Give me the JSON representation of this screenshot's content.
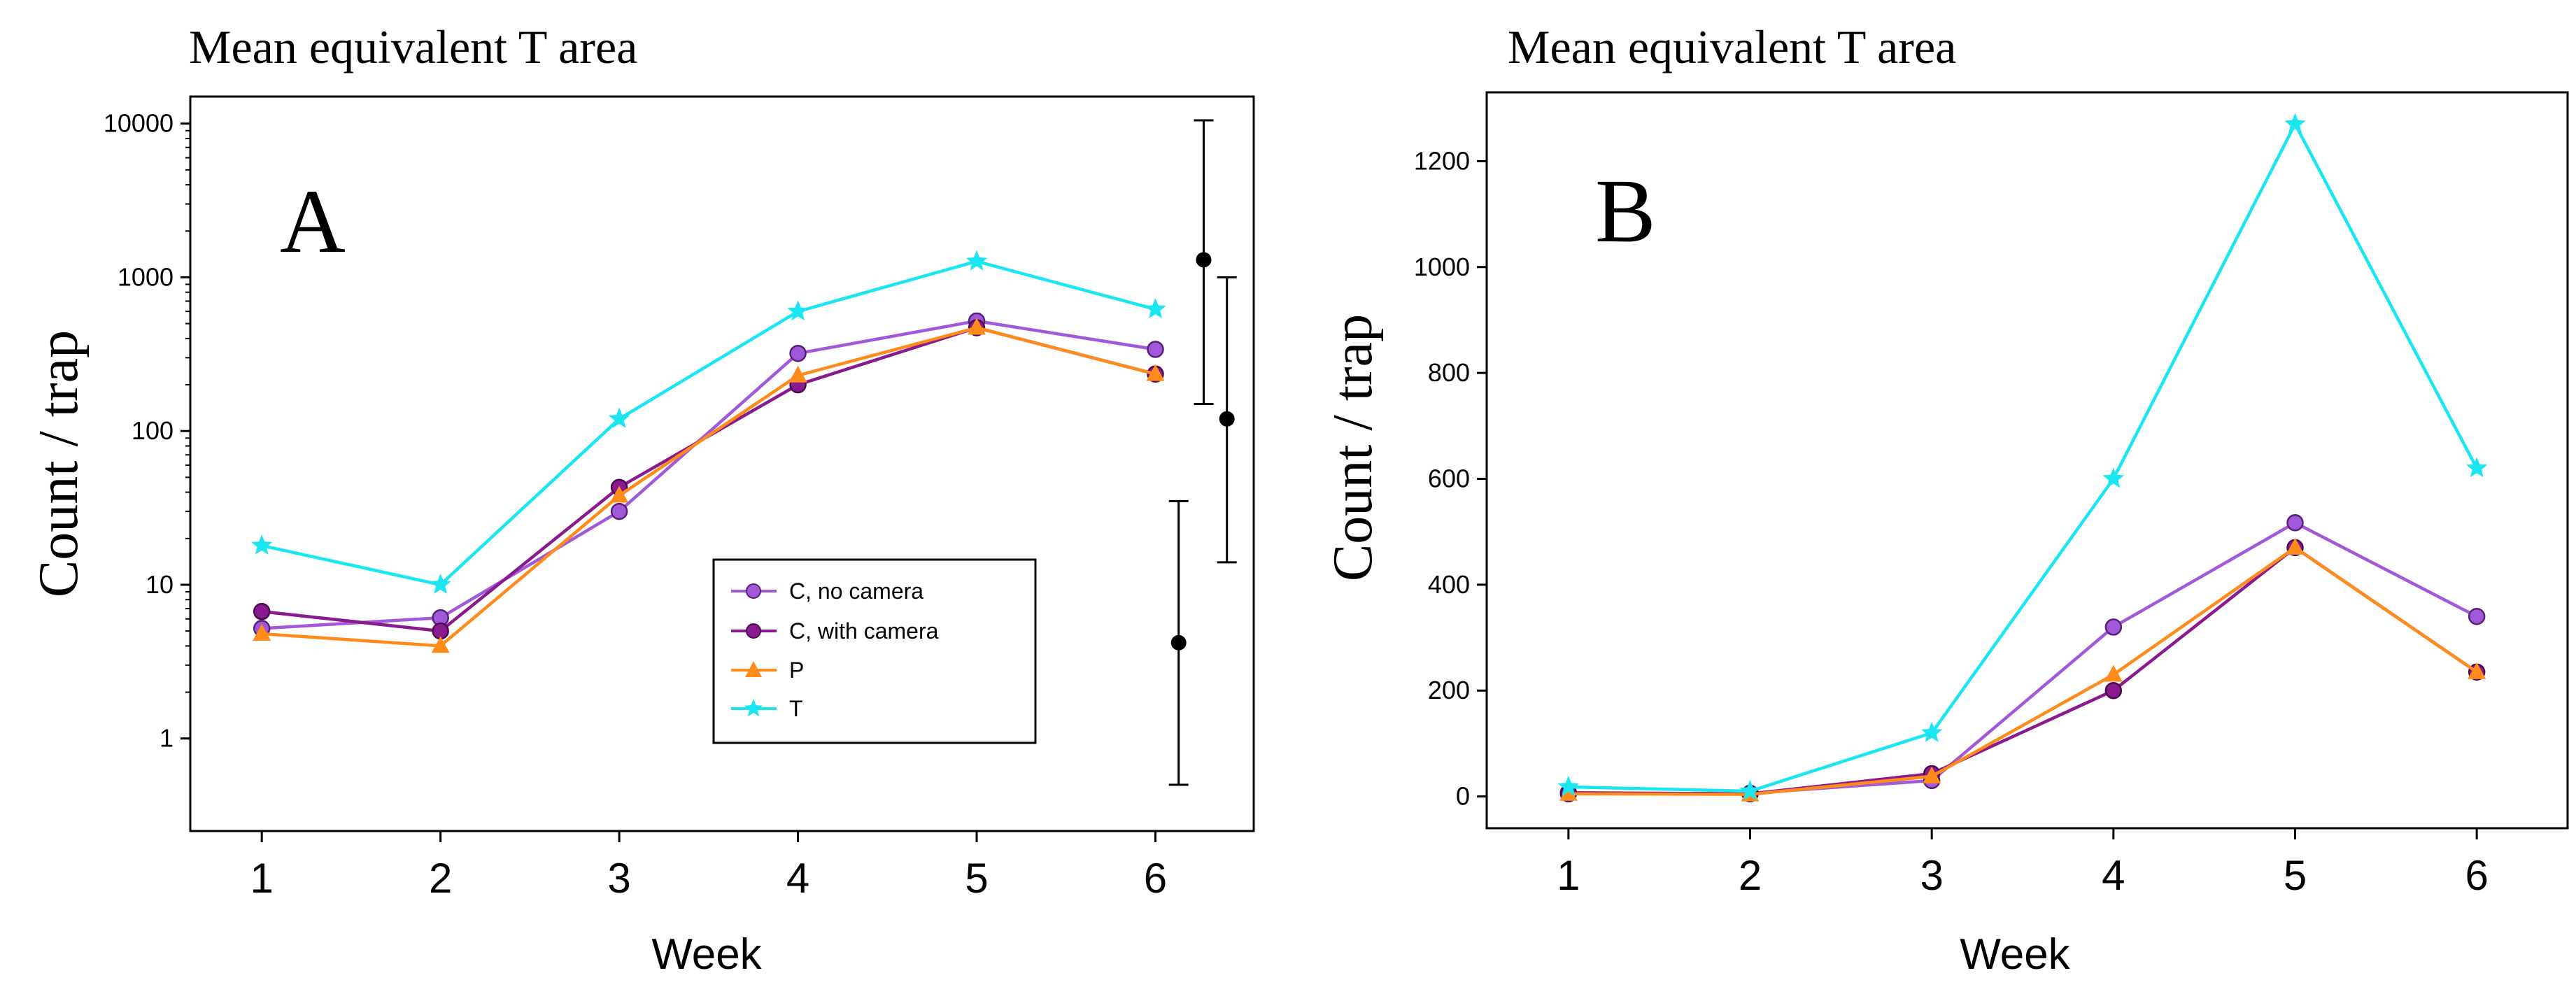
{
  "chart_data": [
    {
      "type": "line",
      "panel_label": "A",
      "title": "Mean equivalent T area",
      "xlabel": "Week",
      "ylabel": "Count / trap",
      "yscale": "log",
      "ylim": [
        0.25,
        15000
      ],
      "xlim": [
        0.6,
        6.55
      ],
      "categories": [
        1,
        2,
        3,
        4,
        5,
        6
      ],
      "yticks": [
        1,
        10,
        100,
        1000,
        10000
      ],
      "ytick_labels": [
        "1",
        "10",
        "100",
        "1000",
        "10000"
      ],
      "series": [
        {
          "name": "C, no camera",
          "color": "#a259d9",
          "marker": "circle",
          "values": [
            5.2,
            6.1,
            30,
            320,
            520,
            340
          ]
        },
        {
          "name": "C, with camera",
          "color": "#8a1a8f",
          "marker": "circle",
          "values": [
            6.7,
            5.0,
            43,
            200,
            470,
            235
          ]
        },
        {
          "name": "P",
          "color": "#ff8c1a",
          "marker": "triangle",
          "values": [
            4.8,
            4.0,
            38,
            230,
            470,
            235
          ]
        },
        {
          "name": "T",
          "color": "#19e6f0",
          "marker": "star",
          "values": [
            18,
            10,
            120,
            600,
            1270,
            620
          ]
        }
      ],
      "error_bars": [
        {
          "x": 6.13,
          "y": 4.2,
          "low": 0.5,
          "high": 35
        },
        {
          "x": 6.27,
          "y": 1300,
          "low": 150,
          "high": 10500
        },
        {
          "x": 6.4,
          "y": 120,
          "low": 14,
          "high": 1000
        }
      ],
      "legend_position": "lower-right"
    },
    {
      "type": "line",
      "panel_label": "B",
      "title": "Mean equivalent T area",
      "xlabel": "Week",
      "ylabel": "Count / trap",
      "yscale": "linear",
      "ylim": [
        -60,
        1330
      ],
      "xlim": [
        0.55,
        6.5
      ],
      "categories": [
        1,
        2,
        3,
        4,
        5,
        6
      ],
      "yticks": [
        0,
        200,
        400,
        600,
        800,
        1000,
        1200
      ],
      "ytick_labels": [
        "0",
        "200",
        "400",
        "600",
        "800",
        "1000",
        "1200"
      ],
      "series": [
        {
          "name": "C, no camera",
          "color": "#a259d9",
          "marker": "circle",
          "values": [
            5,
            6,
            30,
            320,
            517,
            340
          ]
        },
        {
          "name": "C, with camera",
          "color": "#8a1a8f",
          "marker": "circle",
          "values": [
            7,
            5,
            43,
            200,
            470,
            235
          ]
        },
        {
          "name": "P",
          "color": "#ff8c1a",
          "marker": "triangle",
          "values": [
            5,
            4,
            38,
            230,
            470,
            235
          ]
        },
        {
          "name": "T",
          "color": "#19e6f0",
          "marker": "star",
          "values": [
            18,
            10,
            120,
            600,
            1270,
            620
          ]
        }
      ]
    }
  ]
}
